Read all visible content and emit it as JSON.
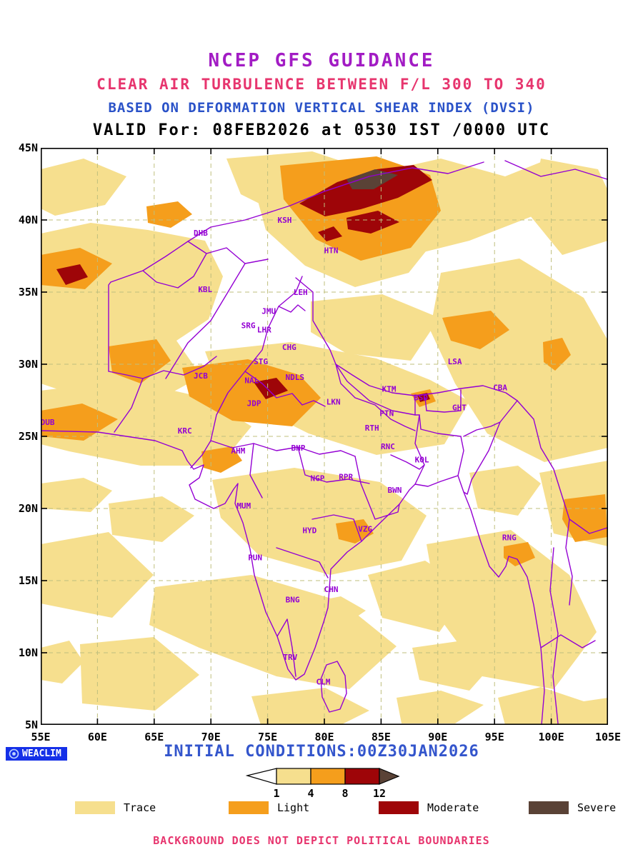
{
  "titles": {
    "line1": "NCEP GFS GUIDANCE",
    "line2": "CLEAR AIR TURBULENCE BETWEEN F/L 300 TO 340",
    "line3": "BASED ON DEFORMATION VERTICAL SHEAR INDEX (DVSI)",
    "line4": "VALID For: 08FEB2026 at 0530 IST /0000 UTC"
  },
  "footer": {
    "initial_conditions": "INITIAL CONDITIONS:00Z30JAN2026",
    "logo": "WEACLIM",
    "disclaimer": "BACKGROUND DOES NOT DEPICT POLITICAL BOUNDARIES"
  },
  "colors": {
    "trace": "#F6DF8E",
    "light": "#F59E1C",
    "moderate": "#9E0508",
    "severe": "#5A4236",
    "boundary": "#9400D3",
    "grid": "#BFBF7E",
    "title1": "#A21CC4",
    "title2": "#E7356E",
    "title3": "#2A52C8",
    "title4": "#000000",
    "footer_blue": "#3355CC",
    "disclaimer": "#E7356E",
    "logo_bg": "#1530E8",
    "logo_text": "#FFFFFF"
  },
  "chart_data": {
    "type": "contour-map",
    "title": "NCEP GFS GUIDANCE - Clear Air Turbulence (DVSI) F/L 300-340",
    "extent": {
      "lon": [
        55,
        105
      ],
      "lat": [
        5,
        45
      ]
    },
    "grid": "dashed, every 5 degrees",
    "lat_ticks": [
      {
        "label": "45N",
        "value": 45
      },
      {
        "label": "40N",
        "value": 40
      },
      {
        "label": "35N",
        "value": 35
      },
      {
        "label": "30N",
        "value": 30
      },
      {
        "label": "25N",
        "value": 25
      },
      {
        "label": "20N",
        "value": 20
      },
      {
        "label": "15N",
        "value": 15
      },
      {
        "label": "10N",
        "value": 10
      },
      {
        "label": "5N",
        "value": 5
      }
    ],
    "lon_ticks": [
      {
        "label": "55E",
        "value": 55
      },
      {
        "label": "60E",
        "value": 60
      },
      {
        "label": "65E",
        "value": 65
      },
      {
        "label": "70E",
        "value": 70
      },
      {
        "label": "75E",
        "value": 75
      },
      {
        "label": "80E",
        "value": 80
      },
      {
        "label": "85E",
        "value": 85
      },
      {
        "label": "90E",
        "value": 90
      },
      {
        "label": "95E",
        "value": 95
      },
      {
        "label": "100E",
        "value": 100
      },
      {
        "label": "105E",
        "value": 105
      }
    ],
    "scale": {
      "values": [
        1,
        4,
        8,
        12
      ]
    },
    "legend": [
      {
        "label": "Trace",
        "color": "trace"
      },
      {
        "label": "Light",
        "color": "light"
      },
      {
        "label": "Moderate",
        "color": "moderate"
      },
      {
        "label": "Severe",
        "color": "severe"
      }
    ],
    "severity_levels": [
      {
        "name": "Trace",
        "range": "1-4"
      },
      {
        "name": "Light",
        "range": "4-8"
      },
      {
        "name": "Moderate",
        "range": "8-12"
      },
      {
        "name": "Severe",
        "range": ">12"
      }
    ],
    "cities": [
      {
        "code": "DHB",
        "lon": 69.1,
        "lat": 38.9
      },
      {
        "code": "KSH",
        "lon": 76.5,
        "lat": 39.8
      },
      {
        "code": "HTN",
        "lon": 80.6,
        "lat": 37.7
      },
      {
        "code": "KBL",
        "lon": 69.5,
        "lat": 35.0
      },
      {
        "code": "LEH",
        "lon": 77.9,
        "lat": 34.8
      },
      {
        "code": "JMU",
        "lon": 75.1,
        "lat": 33.5
      },
      {
        "code": "SRG",
        "lon": 73.3,
        "lat": 32.5
      },
      {
        "code": "LHR",
        "lon": 74.7,
        "lat": 32.2
      },
      {
        "code": "CHG",
        "lon": 76.9,
        "lat": 31.0
      },
      {
        "code": "STG",
        "lon": 74.4,
        "lat": 30.0
      },
      {
        "code": "JCB",
        "lon": 69.1,
        "lat": 29.0
      },
      {
        "code": "NAL",
        "lon": 73.6,
        "lat": 28.7
      },
      {
        "code": "NDLS",
        "lon": 77.4,
        "lat": 28.9
      },
      {
        "code": "JDP",
        "lon": 73.8,
        "lat": 27.1
      },
      {
        "code": "LKN",
        "lon": 80.8,
        "lat": 27.2
      },
      {
        "code": "KTM",
        "lon": 85.7,
        "lat": 28.1
      },
      {
        "code": "BSD",
        "lon": 88.5,
        "lat": 27.5
      },
      {
        "code": "GHT",
        "lon": 91.9,
        "lat": 26.8
      },
      {
        "code": "LSA",
        "lon": 91.5,
        "lat": 30.0
      },
      {
        "code": "CBA",
        "lon": 95.5,
        "lat": 28.2
      },
      {
        "code": "DUB",
        "lon": 55.6,
        "lat": 25.8
      },
      {
        "code": "KRC",
        "lon": 67.7,
        "lat": 25.2
      },
      {
        "code": "AHM",
        "lon": 72.4,
        "lat": 23.8
      },
      {
        "code": "BHP",
        "lon": 77.7,
        "lat": 24.0
      },
      {
        "code": "RTH",
        "lon": 84.2,
        "lat": 25.4
      },
      {
        "code": "PTN",
        "lon": 85.5,
        "lat": 26.4
      },
      {
        "code": "RNC",
        "lon": 85.6,
        "lat": 24.1
      },
      {
        "code": "KOL",
        "lon": 88.6,
        "lat": 23.2
      },
      {
        "code": "NGP",
        "lon": 79.4,
        "lat": 21.9
      },
      {
        "code": "RPR",
        "lon": 81.9,
        "lat": 22.0
      },
      {
        "code": "BWN",
        "lon": 86.2,
        "lat": 21.1
      },
      {
        "code": "MUM",
        "lon": 72.9,
        "lat": 20.0
      },
      {
        "code": "HYD",
        "lon": 78.7,
        "lat": 18.3
      },
      {
        "code": "VZG",
        "lon": 83.6,
        "lat": 18.4
      },
      {
        "code": "PUN",
        "lon": 73.9,
        "lat": 16.4
      },
      {
        "code": "RNG",
        "lon": 96.3,
        "lat": 17.8
      },
      {
        "code": "BNG",
        "lon": 77.2,
        "lat": 13.5
      },
      {
        "code": "CHN",
        "lon": 80.6,
        "lat": 14.2
      },
      {
        "code": "TRV",
        "lon": 77.0,
        "lat": 9.5
      },
      {
        "code": "CLM",
        "lon": 79.9,
        "lat": 7.8
      }
    ]
  }
}
